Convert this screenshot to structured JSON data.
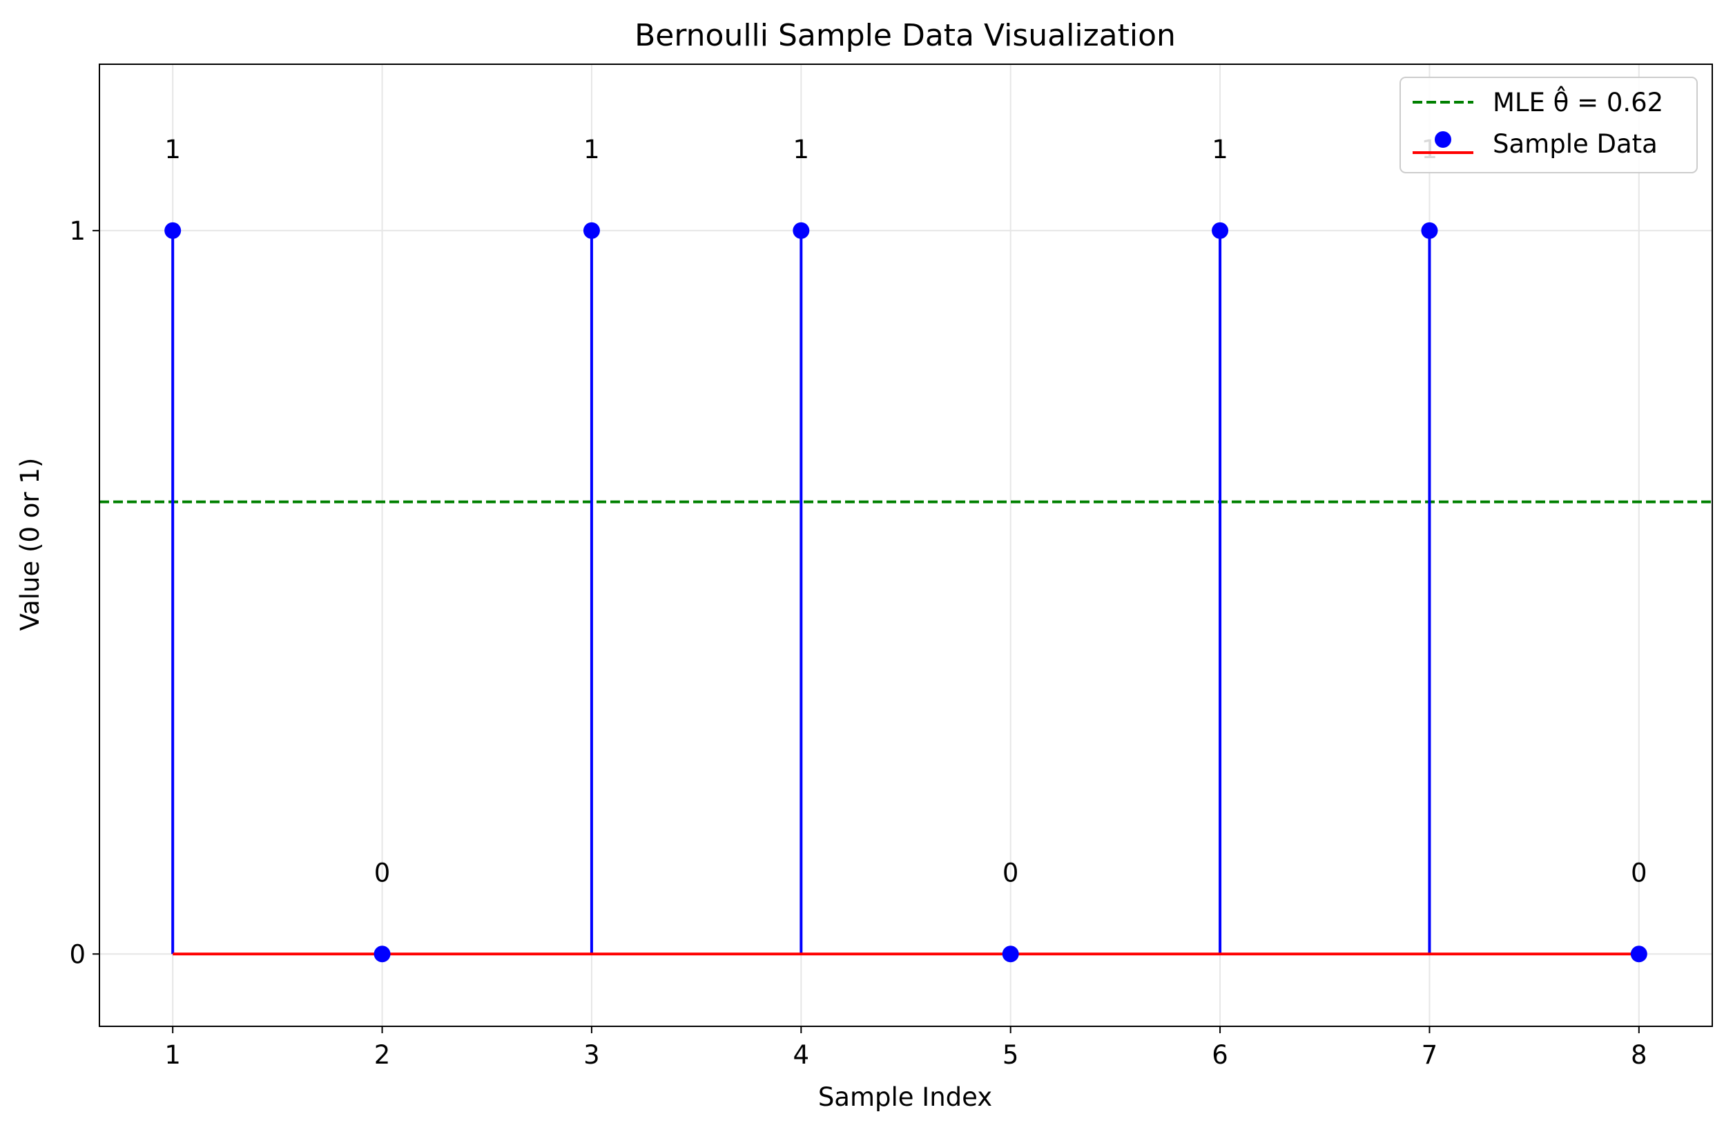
{
  "chart_data": {
    "type": "scatter",
    "title": "Bernoulli Sample Data Visualization",
    "xlabel": "Sample Index",
    "ylabel": "Value (0 or 1)",
    "x": [
      1,
      2,
      3,
      4,
      5,
      6,
      7,
      8
    ],
    "values": [
      1,
      0,
      1,
      1,
      0,
      1,
      1,
      0
    ],
    "data_labels": [
      "1",
      "0",
      "1",
      "1",
      "0",
      "1",
      "1",
      "0"
    ],
    "xticks": [
      1,
      2,
      3,
      4,
      5,
      6,
      7,
      8
    ],
    "xtick_labels": [
      "1",
      "2",
      "3",
      "4",
      "5",
      "6",
      "7",
      "8"
    ],
    "yticks": [
      0,
      1
    ],
    "ytick_labels": [
      "0",
      "1"
    ],
    "xlim": [
      0.65,
      8.35
    ],
    "ylim": [
      -0.1,
      1.23
    ],
    "mle": {
      "label": "MLE θ̂ = 0.62",
      "value": 0.625
    },
    "sample_series_label": "Sample Data",
    "grid": true,
    "legend_position": "top-right",
    "colors": {
      "stem": "#0000ff",
      "marker": "#0000ff",
      "baseline": "#ff0000",
      "mle": "#008000",
      "grid": "#e6e6e6"
    }
  }
}
